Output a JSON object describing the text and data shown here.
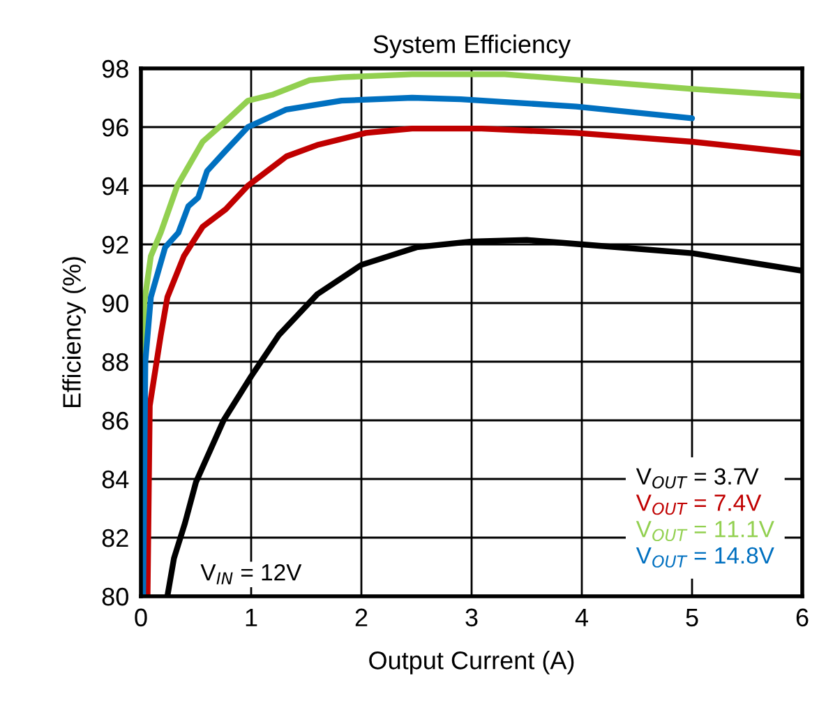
{
  "chart_data": {
    "type": "line",
    "title": "System Efficiency",
    "xlabel": "Output Current (A)",
    "ylabel": "Efficiency (%)",
    "xlim": [
      0,
      6
    ],
    "ylim": [
      80,
      98
    ],
    "xticks": [
      0,
      1,
      2,
      3,
      4,
      5,
      6
    ],
    "yticks": [
      80,
      82,
      84,
      86,
      88,
      90,
      92,
      94,
      96,
      98
    ],
    "grid": true,
    "legend": "bottom right",
    "line_style": "solid",
    "annotations": [
      "V$_{IN}$ = 12V"
    ],
    "series": [
      {
        "name": "V$_{OUT}$ = 3.7V",
        "color": "#000000",
        "x": [
          0.24,
          0.3,
          0.4,
          0.5,
          0.75,
          1.0,
          1.25,
          1.6,
          2.0,
          2.5,
          3.0,
          3.5,
          4.0,
          5.0,
          6.0
        ],
        "values": [
          80,
          81.3,
          82.5,
          83.9,
          86,
          87.5,
          88.9,
          90.3,
          91.3,
          91.9,
          92.1,
          92.15,
          92.0,
          91.7,
          91.1
        ]
      },
      {
        "name": "V$_{OUT}$ = 7.4V",
        "color": "#c00000",
        "x": [
          0.06,
          0.08,
          0.18,
          0.24,
          0.39,
          0.56,
          0.77,
          0.97,
          1.32,
          1.61,
          2.04,
          2.46,
          3.09,
          3.95,
          5.0,
          6.0
        ],
        "values": [
          80,
          86.5,
          88.9,
          90.2,
          91.6,
          92.6,
          93.2,
          94.0,
          95.0,
          95.4,
          95.8,
          95.95,
          95.95,
          95.8,
          95.5,
          95.1
        ]
      },
      {
        "name": "V$_{OUT}$ = 11.1V",
        "color": "#92d050",
        "x": [
          0.01,
          0.03,
          0.09,
          0.18,
          0.33,
          0.56,
          0.77,
          0.97,
          1.19,
          1.53,
          1.82,
          2.46,
          3.3,
          5.0,
          6.0
        ],
        "values": [
          80,
          90,
          91.6,
          92.4,
          94.0,
          95.5,
          96.2,
          96.9,
          97.1,
          97.6,
          97.7,
          97.8,
          97.8,
          97.3,
          97.05
        ]
      },
      {
        "name": "V$_{OUT}$ = 14.8V",
        "color": "#0070c0",
        "x": [
          0.02,
          0.04,
          0.09,
          0.22,
          0.34,
          0.43,
          0.52,
          0.6,
          0.77,
          0.97,
          1.32,
          1.82,
          2.46,
          2.9,
          3.95,
          5.0
        ],
        "values": [
          80,
          88,
          90.2,
          91.9,
          92.4,
          93.3,
          93.6,
          94.5,
          95.2,
          96.0,
          96.6,
          96.9,
          97.0,
          96.95,
          96.7,
          96.3
        ]
      }
    ]
  }
}
